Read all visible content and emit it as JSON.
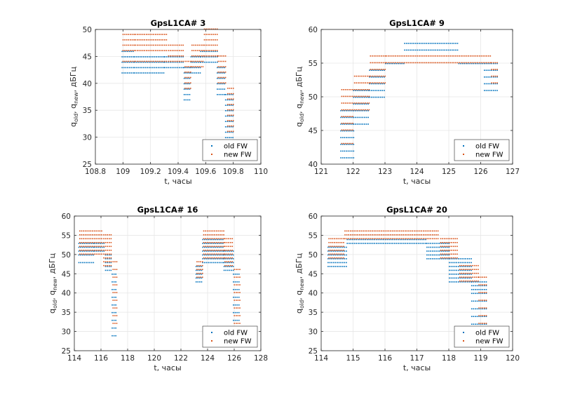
{
  "colors": {
    "old": "#0072BD",
    "new": "#D95319",
    "grid": "#e6e6e6",
    "axis": "#262626"
  },
  "chart_data": [
    {
      "type": "scatter",
      "title": "GpsL1CA# 3",
      "xlabel": "t, часы",
      "ylabel_parts": [
        "q",
        "old",
        ", q",
        "new",
        ", дБГц"
      ],
      "xlim": [
        108.8,
        110
      ],
      "ylim": [
        25,
        50
      ],
      "xticks": [
        108.8,
        109,
        109.2,
        109.4,
        109.6,
        109.8,
        110
      ],
      "xtick_labels": [
        "108.8",
        "109",
        "109.2",
        "109.4",
        "109.6",
        "109.8",
        "110"
      ],
      "yticks": [
        25,
        30,
        35,
        40,
        45,
        50
      ],
      "ytick_labels": [
        "25",
        "30",
        "35",
        "40",
        "45",
        "50"
      ],
      "grid": true,
      "legend_position": "bottom-right",
      "series": [
        {
          "name": "old FW",
          "color": "#0072BD",
          "segments": [
            {
              "x0": 108.99,
              "x1": 109.08,
              "ys": [
                42,
                43,
                44,
                45,
                46
              ]
            },
            {
              "x0": 109.08,
              "x1": 109.3,
              "ys": [
                42,
                43,
                44,
                45
              ]
            },
            {
              "x0": 109.3,
              "x1": 109.44,
              "ys": [
                43,
                44,
                45
              ]
            },
            {
              "x0": 109.44,
              "x1": 109.49,
              "ys": [
                37,
                38,
                39,
                40,
                41,
                42,
                43
              ]
            },
            {
              "x0": 109.49,
              "x1": 109.56,
              "ys": [
                42,
                43,
                44,
                45
              ]
            },
            {
              "x0": 109.56,
              "x1": 109.68,
              "ys": [
                44,
                45,
                46
              ]
            },
            {
              "x0": 109.68,
              "x1": 109.74,
              "ys": [
                38,
                39,
                40,
                41,
                42,
                43
              ]
            },
            {
              "x0": 109.74,
              "x1": 109.8,
              "ys": [
                30,
                31,
                32,
                33,
                34,
                35,
                36,
                37,
                38
              ]
            }
          ]
        },
        {
          "name": "new FW",
          "color": "#D95319",
          "segments": [
            {
              "x0": 108.99,
              "x1": 109.08,
              "ys": [
                44,
                46,
                47,
                48,
                49
              ]
            },
            {
              "x0": 109.08,
              "x1": 109.32,
              "ys": [
                44,
                46,
                47,
                48,
                49
              ]
            },
            {
              "x0": 109.32,
              "x1": 109.44,
              "ys": [
                44,
                45,
                46,
                47
              ]
            },
            {
              "x0": 109.44,
              "x1": 109.49,
              "ys": [
                39,
                40,
                41,
                42,
                43,
                44
              ]
            },
            {
              "x0": 109.49,
              "x1": 109.58,
              "ys": [
                43,
                44,
                45,
                46,
                47
              ]
            },
            {
              "x0": 109.58,
              "x1": 109.68,
              "ys": [
                45,
                46,
                47,
                48,
                49,
                50
              ]
            },
            {
              "x0": 109.68,
              "x1": 109.75,
              "ys": [
                40,
                41,
                42,
                43,
                44,
                45
              ]
            },
            {
              "x0": 109.75,
              "x1": 109.8,
              "ys": [
                31,
                32,
                33,
                34,
                35,
                36,
                37,
                38,
                39
              ]
            }
          ]
        }
      ]
    },
    {
      "type": "scatter",
      "title": "GpsL1CA# 9",
      "xlabel": "t, часы",
      "ylabel_parts": [
        "q",
        "old",
        ", q",
        "new",
        ", дБГц"
      ],
      "xlim": [
        121,
        127
      ],
      "ylim": [
        40,
        60
      ],
      "xticks": [
        121,
        122,
        123,
        124,
        125,
        126,
        127
      ],
      "xtick_labels": [
        "121",
        "122",
        "123",
        "124",
        "125",
        "126",
        "127"
      ],
      "yticks": [
        40,
        45,
        50,
        55,
        60
      ],
      "ytick_labels": [
        "40",
        "45",
        "50",
        "55",
        "60"
      ],
      "grid": true,
      "legend_position": "bottom-right",
      "series": [
        {
          "name": "old FW",
          "color": "#0072BD",
          "segments": [
            {
              "x0": 121.6,
              "x1": 122.0,
              "ys": [
                41,
                42,
                43,
                44,
                45,
                46,
                47,
                48
              ]
            },
            {
              "x0": 122.0,
              "x1": 122.5,
              "ys": [
                46,
                47,
                48,
                49,
                50,
                51
              ]
            },
            {
              "x0": 122.5,
              "x1": 123.0,
              "ys": [
                50,
                51,
                52,
                53,
                54
              ]
            },
            {
              "x0": 123.0,
              "x1": 123.6,
              "ys": [
                55
              ]
            },
            {
              "x0": 123.6,
              "x1": 125.3,
              "ys": [
                57,
                58
              ]
            },
            {
              "x0": 125.3,
              "x1": 126.1,
              "ys": [
                55
              ]
            },
            {
              "x0": 126.1,
              "x1": 126.5,
              "ys": [
                51,
                52,
                53,
                54,
                55
              ]
            }
          ]
        },
        {
          "name": "new FW",
          "color": "#D95319",
          "segments": [
            {
              "x0": 121.6,
              "x1": 122.0,
              "ys": [
                43,
                45,
                46,
                47,
                48,
                49,
                50,
                51
              ]
            },
            {
              "x0": 122.0,
              "x1": 122.5,
              "ys": [
                48,
                49,
                50,
                51,
                52,
                53
              ]
            },
            {
              "x0": 122.5,
              "x1": 123.0,
              "ys": [
                52,
                53,
                54,
                55,
                56
              ]
            },
            {
              "x0": 123.0,
              "x1": 126.3,
              "ys": [
                55,
                56
              ]
            },
            {
              "x0": 126.3,
              "x1": 126.5,
              "ys": [
                52,
                53,
                54,
                55
              ]
            }
          ]
        }
      ]
    },
    {
      "type": "scatter",
      "title": "GpsL1CA# 16",
      "xlabel": "t, часы",
      "ylabel_parts": [
        "q",
        "old",
        ", q",
        "new",
        ", дБГц"
      ],
      "xlim": [
        114,
        128
      ],
      "ylim": [
        25,
        60
      ],
      "xticks": [
        114,
        116,
        118,
        120,
        122,
        124,
        126,
        128
      ],
      "xtick_labels": [
        "114",
        "116",
        "118",
        "120",
        "122",
        "124",
        "126",
        "128"
      ],
      "yticks": [
        25,
        30,
        35,
        40,
        45,
        50,
        55,
        60
      ],
      "ytick_labels": [
        "25",
        "30",
        "35",
        "40",
        "45",
        "50",
        "55",
        "60"
      ],
      "grid": true,
      "legend_position": "bottom-right",
      "series": [
        {
          "name": "old FW",
          "color": "#0072BD",
          "segments": [
            {
              "x0": 114.3,
              "x1": 115.5,
              "ys": [
                48,
                50,
                51,
                52,
                53
              ]
            },
            {
              "x0": 115.5,
              "x1": 116.3,
              "ys": [
                51,
                52,
                53
              ]
            },
            {
              "x0": 116.3,
              "x1": 116.8,
              "ys": [
                46,
                47,
                48,
                49,
                50
              ]
            },
            {
              "x0": 116.8,
              "x1": 117.2,
              "ys": [
                29,
                31,
                33,
                35,
                37,
                39,
                41,
                43,
                45
              ]
            },
            {
              "x0": 123.1,
              "x1": 123.6,
              "ys": [
                43,
                44,
                45,
                46,
                47
              ]
            },
            {
              "x0": 123.6,
              "x1": 125.2,
              "ys": [
                48,
                49,
                50,
                51,
                52,
                53,
                54
              ]
            },
            {
              "x0": 125.2,
              "x1": 125.9,
              "ys": [
                46,
                47,
                48,
                49,
                50,
                51
              ]
            },
            {
              "x0": 125.9,
              "x1": 126.4,
              "ys": [
                33,
                35,
                37,
                39,
                41,
                43,
                45
              ]
            }
          ]
        },
        {
          "name": "new FW",
          "color": "#D95319",
          "segments": [
            {
              "x0": 114.3,
              "x1": 116.1,
              "ys": [
                50,
                51,
                52,
                53,
                54,
                55,
                56
              ]
            },
            {
              "x0": 116.1,
              "x1": 116.8,
              "ys": [
                47,
                48,
                49,
                50,
                51,
                52,
                53,
                54,
                55
              ]
            },
            {
              "x0": 116.8,
              "x1": 117.2,
              "ys": [
                32,
                34,
                36,
                38,
                40,
                42,
                44,
                46,
                48
              ]
            },
            {
              "x0": 123.1,
              "x1": 123.6,
              "ys": [
                44,
                45,
                46,
                47,
                48
              ]
            },
            {
              "x0": 123.6,
              "x1": 125.2,
              "ys": [
                49,
                50,
                51,
                52,
                53,
                54,
                55,
                56
              ]
            },
            {
              "x0": 125.2,
              "x1": 125.9,
              "ys": [
                47,
                48,
                49,
                50,
                51,
                52,
                53,
                54
              ]
            },
            {
              "x0": 125.9,
              "x1": 126.4,
              "ys": [
                32,
                34,
                36,
                38,
                40,
                42,
                44,
                46
              ]
            }
          ]
        }
      ]
    },
    {
      "type": "scatter",
      "title": "GpsL1CA# 20",
      "xlabel": "t, часы",
      "ylabel_parts": [
        "q",
        "old",
        ", q",
        "new",
        ", дБГц"
      ],
      "xlim": [
        114,
        120
      ],
      "ylim": [
        25,
        60
      ],
      "xticks": [
        114,
        115,
        116,
        117,
        118,
        119,
        120
      ],
      "xtick_labels": [
        "114",
        "115",
        "116",
        "117",
        "118",
        "119",
        "120"
      ],
      "yticks": [
        25,
        30,
        35,
        40,
        45,
        50,
        55,
        60
      ],
      "ytick_labels": [
        "25",
        "30",
        "35",
        "40",
        "45",
        "50",
        "55",
        "60"
      ],
      "grid": true,
      "legend_position": "bottom-right",
      "series": [
        {
          "name": "old FW",
          "color": "#0072BD",
          "segments": [
            {
              "x0": 114.2,
              "x1": 114.8,
              "ys": [
                47,
                48,
                49,
                50,
                51,
                52
              ]
            },
            {
              "x0": 114.8,
              "x1": 117.3,
              "ys": [
                53,
                54
              ]
            },
            {
              "x0": 117.3,
              "x1": 118.0,
              "ys": [
                49,
                50,
                51,
                52,
                53
              ]
            },
            {
              "x0": 118.0,
              "x1": 118.7,
              "ys": [
                43,
                44,
                45,
                46,
                47,
                48,
                49
              ]
            },
            {
              "x0": 118.7,
              "x1": 119.2,
              "ys": [
                32,
                34,
                36,
                38,
                40,
                41,
                42,
                43
              ]
            }
          ]
        },
        {
          "name": "new FW",
          "color": "#D95319",
          "segments": [
            {
              "x0": 114.2,
              "x1": 114.7,
              "ys": [
                49,
                50,
                51,
                52,
                53,
                54
              ]
            },
            {
              "x0": 114.7,
              "x1": 117.7,
              "ys": [
                54,
                55,
                56
              ]
            },
            {
              "x0": 117.7,
              "x1": 118.3,
              "ys": [
                49,
                50,
                51,
                52,
                53,
                54
              ]
            },
            {
              "x0": 118.3,
              "x1": 118.9,
              "ys": [
                43,
                44,
                45,
                46,
                47
              ]
            },
            {
              "x0": 118.9,
              "x1": 119.2,
              "ys": [
                32,
                34,
                36,
                38,
                40,
                42,
                44
              ]
            }
          ]
        }
      ]
    }
  ]
}
